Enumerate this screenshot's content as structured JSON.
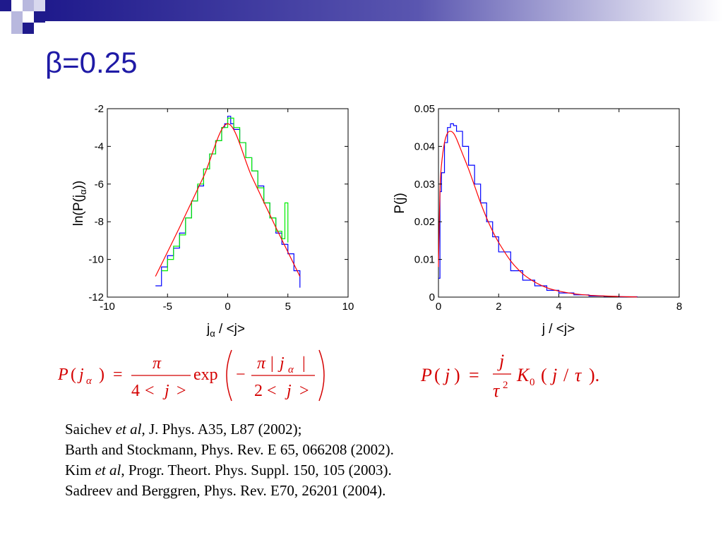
{
  "slide": {
    "title": "β=0.25"
  },
  "colors": {
    "title": "#1f1aa6",
    "formula": "#d40000",
    "series_blue": "#0000ff",
    "series_green": "#00ee00",
    "series_red": "#ff0000",
    "decoration_dark": "#1f1a8c",
    "decoration_light": "#b8b8de"
  },
  "chart_data": [
    {
      "type": "line",
      "xlabel_main": "j",
      "xlabel_sub": "α",
      "xlabel_rest": " / <j>",
      "ylabel_main": "ln(P(j",
      "ylabel_sub": "α",
      "ylabel_rest": "))",
      "xlim": [
        -10,
        10
      ],
      "ylim": [
        -12,
        -2
      ],
      "xticks": [
        -10,
        -5,
        0,
        5,
        10
      ],
      "yticks": [
        -2,
        -4,
        -6,
        -8,
        -10,
        -12
      ],
      "series": [
        {
          "color": "blue",
          "style": "step",
          "x": [
            -6.0,
            -5.5,
            -5.0,
            -4.5,
            -4.0,
            -3.5,
            -3.0,
            -2.5,
            -2.0,
            -1.5,
            -1.0,
            -0.5,
            -0.25,
            0.0,
            0.25,
            0.5,
            1.0,
            1.5,
            2.0,
            2.5,
            3.0,
            3.5,
            4.0,
            4.5,
            5.0,
            5.5,
            6.0
          ],
          "y": [
            -11.4,
            -10.4,
            -9.8,
            -9.4,
            -8.6,
            -7.8,
            -6.9,
            -6.1,
            -5.2,
            -4.4,
            -3.7,
            -3.0,
            -2.8,
            -2.4,
            -2.8,
            -3.1,
            -3.8,
            -4.6,
            -5.3,
            -6.1,
            -7.0,
            -7.8,
            -8.6,
            -9.2,
            -9.7,
            -10.6,
            -11.5
          ]
        },
        {
          "color": "green",
          "style": "step",
          "x": [
            -5.5,
            -5.0,
            -4.5,
            -4.0,
            -3.5,
            -3.0,
            -2.5,
            -2.0,
            -1.5,
            -1.0,
            -0.5,
            0.0,
            0.5,
            1.0,
            1.5,
            2.0,
            2.5,
            3.0,
            3.5,
            4.0,
            4.5,
            4.75,
            5.0
          ],
          "y": [
            -10.6,
            -10.0,
            -9.3,
            -8.7,
            -7.8,
            -6.9,
            -6.0,
            -5.2,
            -4.4,
            -3.7,
            -3.0,
            -2.5,
            -3.0,
            -3.8,
            -4.6,
            -5.3,
            -6.2,
            -7.0,
            -7.8,
            -8.5,
            -8.9,
            -7.0,
            -9.1
          ]
        },
        {
          "color": "red",
          "style": "line",
          "x": [
            -6.0,
            -4.0,
            -2.0,
            0.0,
            2.0,
            4.0,
            6.0
          ],
          "y": [
            -10.9,
            -8.3,
            -5.6,
            -2.8,
            -5.6,
            -8.3,
            -10.9
          ]
        }
      ]
    },
    {
      "type": "line",
      "xlabel": "j / <j>",
      "ylabel": "P(j)",
      "xlim": [
        0,
        8
      ],
      "ylim": [
        0,
        0.05
      ],
      "xticks": [
        0,
        2,
        4,
        6,
        8
      ],
      "yticks": [
        "0",
        "0.01",
        "0.02",
        "0.03",
        "0.04",
        "0.05"
      ],
      "series": [
        {
          "color": "blue",
          "style": "step",
          "x": [
            0.0,
            0.05,
            0.1,
            0.2,
            0.3,
            0.4,
            0.5,
            0.6,
            0.8,
            1.0,
            1.2,
            1.4,
            1.6,
            1.8,
            2.0,
            2.4,
            2.8,
            3.2,
            3.6,
            4.0,
            4.5,
            5.0,
            5.5,
            6.0,
            6.6
          ],
          "y": [
            0.005,
            0.028,
            0.033,
            0.041,
            0.045,
            0.046,
            0.0455,
            0.044,
            0.04,
            0.035,
            0.03,
            0.025,
            0.02,
            0.016,
            0.012,
            0.007,
            0.0045,
            0.003,
            0.0018,
            0.0011,
            0.0006,
            0.0003,
            0.0002,
            0.0001,
            0.0
          ]
        },
        {
          "color": "red",
          "style": "line",
          "x": [
            0.0,
            0.05,
            0.1,
            0.2,
            0.3,
            0.4,
            0.5,
            0.6,
            0.8,
            1.0,
            1.2,
            1.4,
            1.6,
            1.8,
            2.0,
            2.4,
            2.8,
            3.2,
            3.6,
            4.0,
            4.5,
            5.0,
            5.5,
            6.0,
            6.6
          ],
          "y": [
            0.008,
            0.028,
            0.035,
            0.041,
            0.0435,
            0.044,
            0.0435,
            0.042,
            0.038,
            0.034,
            0.0295,
            0.025,
            0.021,
            0.0175,
            0.0145,
            0.0096,
            0.0062,
            0.004,
            0.0025,
            0.0016,
            0.0009,
            0.0005,
            0.0003,
            0.00015,
            5e-05
          ]
        }
      ]
    }
  ],
  "formulas": {
    "left": {
      "P": "P",
      "j": "j",
      "alpha": "α",
      "pi": "π",
      "four": "4",
      "lt": "<",
      "gt": ">",
      "exp": "exp",
      "minus": "−",
      "bar": "|",
      "two": "2",
      "equals": "=",
      "lparen": "(",
      "rparen": ")"
    },
    "right": {
      "P": "P",
      "j": "j",
      "equals": "=",
      "tau": "τ",
      "sq": "2",
      "K": "K",
      "zero": "0",
      "slash": "/",
      "end": ")."
    }
  },
  "references": [
    {
      "author": "Saichev ",
      "etal": "et al",
      "rest": ", J. Phys. A35, L87 (2002);"
    },
    {
      "author": "",
      "etal": "",
      "rest": "Barth and Stockmann, Phys. Rev. E 65, 066208 (2002)."
    },
    {
      "author": "Kim ",
      "etal": "et al",
      "rest": ", Progr. Theort. Phys. Suppl. 150, 105 (2003)."
    },
    {
      "author": "",
      "etal": "",
      "rest": "Sadreev and Berggren, Phys. Rev. E70, 26201 (2004)."
    }
  ]
}
